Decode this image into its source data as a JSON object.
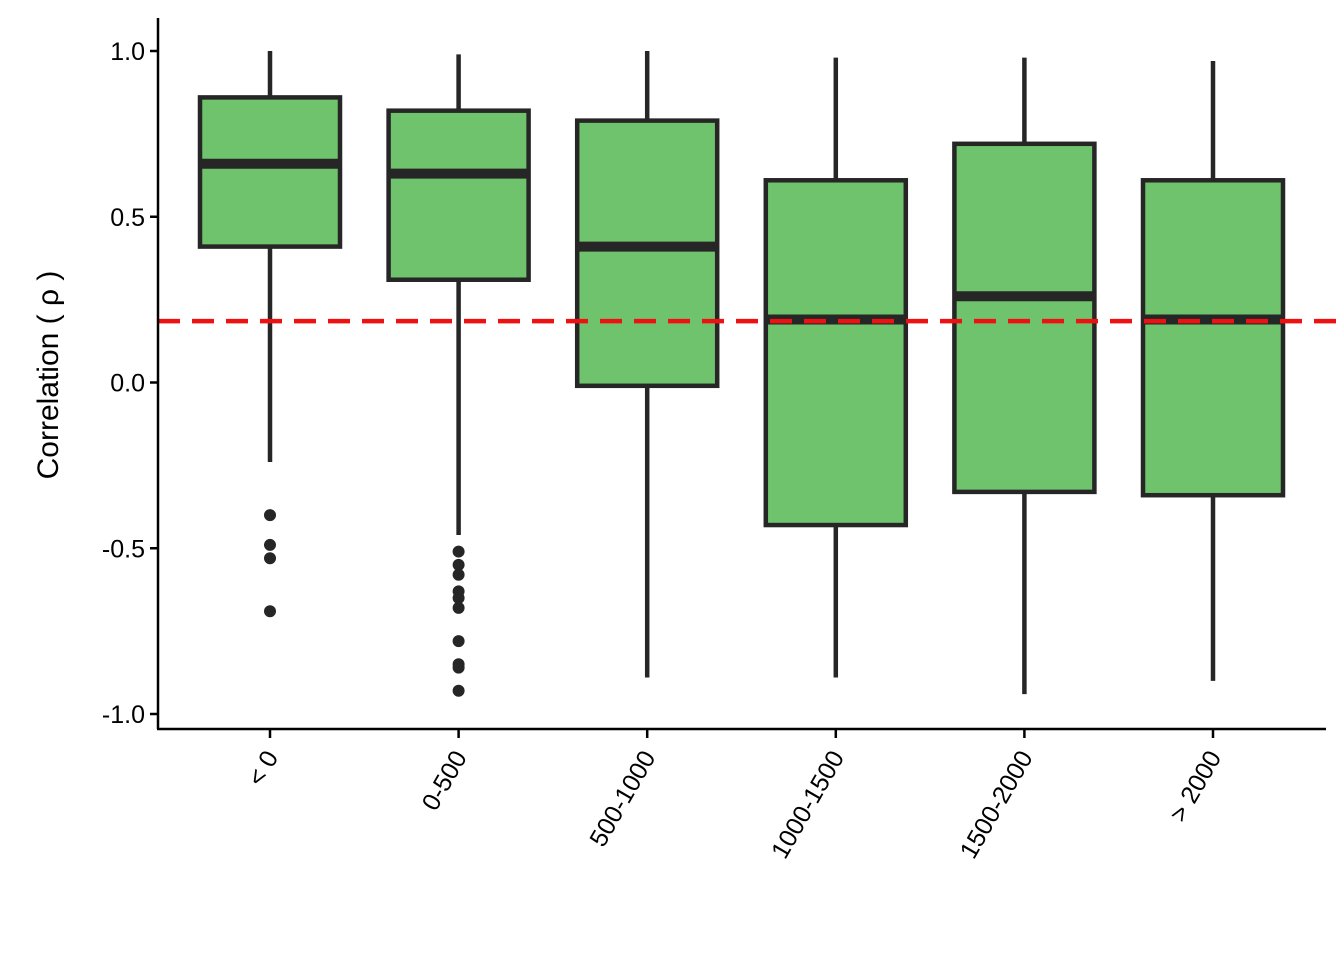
{
  "chart_data": {
    "type": "boxplot",
    "title": "",
    "xlabel": "",
    "ylabel": "Correlation ( ρ )",
    "ylim": [
      -1.05,
      1.1
    ],
    "y_ticks": [
      {
        "value": 1.0,
        "label": "1.0"
      },
      {
        "value": 0.5,
        "label": "0.5"
      },
      {
        "value": 0.0,
        "label": "0.0"
      },
      {
        "value": -0.5,
        "label": "-0.5"
      },
      {
        "value": -1.0,
        "label": "-1.0"
      }
    ],
    "categories": [
      "< 0",
      "0-500",
      "500-1000",
      "1000-1500",
      "1500-2000",
      "> 2000"
    ],
    "boxes": [
      {
        "category": "< 0",
        "whisker_low": -0.24,
        "q1": 0.41,
        "median": 0.66,
        "q3": 0.86,
        "whisker_high": 1.0,
        "outliers": [
          -0.4,
          -0.49,
          -0.53,
          -0.69
        ]
      },
      {
        "category": "0-500",
        "whisker_low": -0.46,
        "q1": 0.31,
        "median": 0.63,
        "q3": 0.82,
        "whisker_high": 0.99,
        "outliers": [
          -0.51,
          -0.55,
          -0.58,
          -0.63,
          -0.65,
          -0.68,
          -0.78,
          -0.85,
          -0.86,
          -0.93
        ]
      },
      {
        "category": "500-1000",
        "whisker_low": -0.89,
        "q1": -0.01,
        "median": 0.41,
        "q3": 0.79,
        "whisker_high": 1.0,
        "outliers": []
      },
      {
        "category": "1000-1500",
        "whisker_low": -0.89,
        "q1": -0.43,
        "median": 0.19,
        "q3": 0.61,
        "whisker_high": 0.98,
        "outliers": []
      },
      {
        "category": "1500-2000",
        "whisker_low": -0.94,
        "q1": -0.33,
        "median": 0.26,
        "q3": 0.72,
        "whisker_high": 0.98,
        "outliers": []
      },
      {
        "category": "> 2000",
        "whisker_low": -0.9,
        "q1": -0.34,
        "median": 0.19,
        "q3": 0.61,
        "whisker_high": 0.97,
        "outliers": []
      }
    ],
    "reference_line": {
      "value": 0.185,
      "style": "dashed",
      "color": "#ee1111"
    },
    "colors": {
      "box_fill": "#6fc36d",
      "box_stroke": "#262626",
      "axis": "#000000"
    },
    "grid": false,
    "legend": "none"
  }
}
